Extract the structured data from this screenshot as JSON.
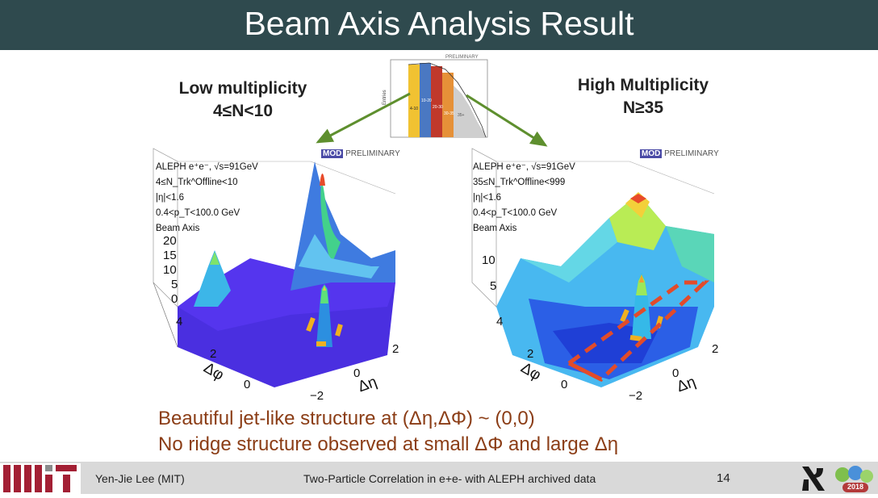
{
  "slide": {
    "title": "Beam Axis Analysis Result",
    "low": {
      "line1": "Low multiplicity",
      "line2": "4≤N<10"
    },
    "high": {
      "line1": "High Multiplicity",
      "line2": "N≥35"
    },
    "caption": {
      "line1": "Beautiful jet-like structure at (Δη,ΔΦ) ~ (0,0)",
      "line2": "No ridge structure observed at small ΔΦ and large Δη"
    },
    "footer": {
      "author": "Yen-Jie Lee (MIT)",
      "talk": "Two-Particle Correlation in e+e- with ALEPH archived data",
      "page": "14",
      "year_badge": "2018"
    }
  },
  "left_plot": {
    "preliminary": "PRELIMINARY",
    "mod": "MOD",
    "info": [
      "ALEPH e⁺e⁻, √s=91GeV",
      "4≤N_Trk^Offline<10",
      "|η|<1.6",
      "0.4<p_T<100.0 GeV",
      "Beam Axis"
    ],
    "z_ticks": [
      "20",
      "15",
      "10",
      "5",
      "0"
    ],
    "phi_ticks": [
      "4",
      "2",
      "0"
    ],
    "eta_ticks": [
      "2",
      "0",
      "−2"
    ],
    "phi_label": "Δφ",
    "eta_label": "Δη"
  },
  "right_plot": {
    "preliminary": "PRELIMINARY",
    "mod": "MOD",
    "info": [
      "ALEPH e⁺e⁻, √s=91GeV",
      "35≤N_Trk^Offline<999",
      "|η|<1.6",
      "0.4<p_T<100.0 GeV",
      "Beam Axis"
    ],
    "z_ticks": [
      "10",
      "5"
    ],
    "phi_ticks": [
      "4",
      "2",
      "0"
    ],
    "eta_ticks": [
      "2",
      "0",
      "−2"
    ],
    "phi_label": "Δφ",
    "eta_label": "Δη"
  },
  "inset": {
    "preliminary": "PRELIMINARY",
    "ylabel": "Entries",
    "bins": [
      "4-10",
      "10-20",
      "20-30",
      "30-35",
      "35+"
    ]
  },
  "colors": {
    "title_bg": "#2f4a4e",
    "caption": "#8b3d16",
    "arrow": "#5e8f2e",
    "dash": "#e24b2a",
    "footer_bg": "#d9d9d9"
  }
}
